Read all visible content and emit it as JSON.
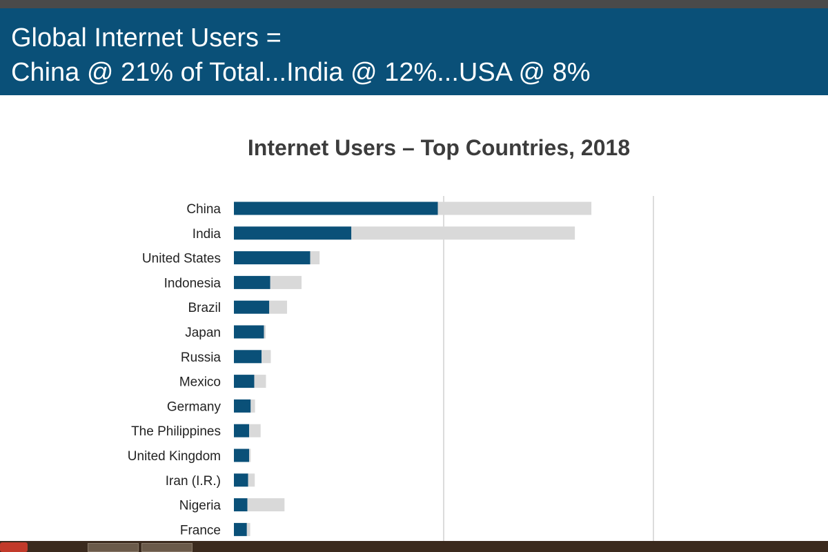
{
  "header": {
    "line1": "Global Internet Users =",
    "line2": "China @ 21% of Total...India @ 12%...USA @ 8%"
  },
  "colors": {
    "header_bg": "#0a5078",
    "bar_users": "#0a5078",
    "bar_remainder": "#d9d9d9",
    "gridline": "#d0d0d0"
  },
  "chart_data": {
    "type": "bar",
    "orientation": "horizontal",
    "stacked": true,
    "title": "Internet Users – Top Countries, 2018",
    "categories": [
      "China",
      "India",
      "United States",
      "Indonesia",
      "Brazil",
      "Japan",
      "Russia",
      "Mexico",
      "Germany",
      "The Philippines",
      "United Kingdom",
      "Iran (I.R.)",
      "Nigeria",
      "France"
    ],
    "series": [
      {
        "values": [
          802,
          462,
          300,
          143,
          139,
          118,
          109,
          80,
          66,
          60,
          60,
          56,
          53,
          51
        ]
      },
      {
        "values": [
          604,
          879,
          37,
          123,
          70,
          7,
          36,
          46,
          17,
          45,
          6,
          26,
          146,
          13
        ]
      }
    ],
    "xlim": [
      0,
      1650
    ],
    "x_gridlines": [
      825,
      1650
    ],
    "grid": true,
    "legend": "none"
  }
}
